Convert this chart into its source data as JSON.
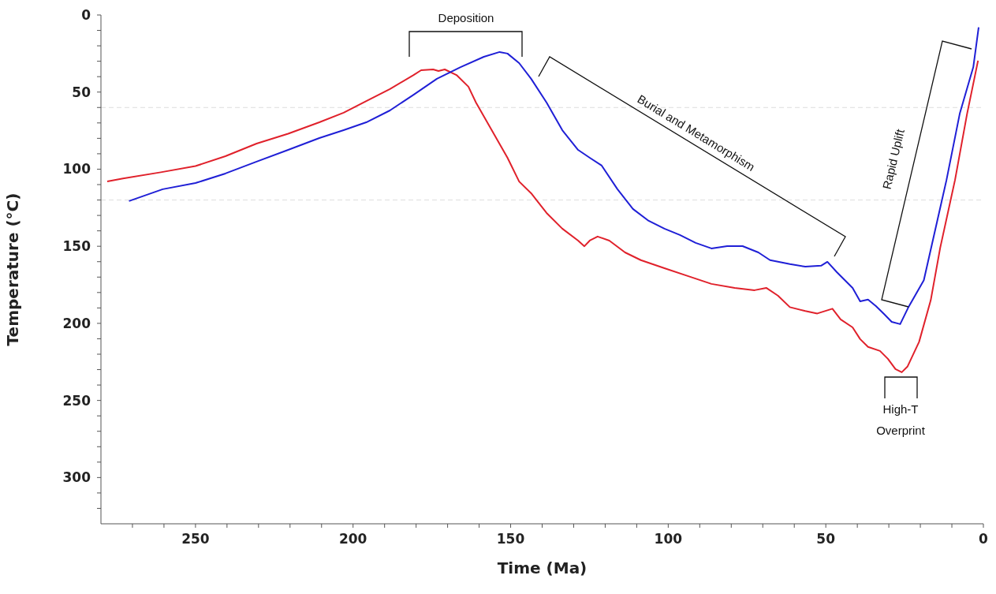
{
  "chart_data": {
    "type": "line",
    "xlabel": "Time  (Ma)",
    "ylabel": "Temperature  (°C)",
    "xlim": [
      280,
      0
    ],
    "ylim": [
      330,
      0
    ],
    "xticks": [
      0,
      {
        "value": 10,
        "label": null
      },
      {
        "value": 20,
        "label": null
      },
      {
        "value": 30,
        "label": null
      },
      {
        "value": 40,
        "label": null
      },
      50,
      {
        "value": 60,
        "label": null
      },
      {
        "value": 70,
        "label": null
      },
      {
        "value": 80,
        "label": null
      },
      {
        "value": 90,
        "label": null
      },
      100,
      {
        "value": 110,
        "label": null
      },
      {
        "value": 120,
        "label": null
      },
      {
        "value": 130,
        "label": null
      },
      {
        "value": 140,
        "label": null
      },
      150,
      {
        "value": 160,
        "label": null
      },
      {
        "value": 170,
        "label": null
      },
      {
        "value": 180,
        "label": null
      },
      {
        "value": 190,
        "label": null
      },
      200,
      {
        "value": 210,
        "label": null
      },
      {
        "value": 220,
        "label": null
      },
      {
        "value": 230,
        "label": null
      },
      {
        "value": 240,
        "label": null
      },
      250,
      {
        "value": 260,
        "label": null
      },
      {
        "value": 270,
        "label": null
      }
    ],
    "yticks": [
      0,
      {
        "value": 10,
        "label": null
      },
      {
        "value": 20,
        "label": null
      },
      {
        "value": 30,
        "label": null
      },
      {
        "value": 40,
        "label": null
      },
      50,
      {
        "value": 60,
        "label": null
      },
      {
        "value": 70,
        "label": null
      },
      {
        "value": 80,
        "label": null
      },
      {
        "value": 90,
        "label": null
      },
      100,
      {
        "value": 110,
        "label": null
      },
      {
        "value": 120,
        "label": null
      },
      {
        "value": 130,
        "label": null
      },
      {
        "value": 140,
        "label": null
      },
      150,
      {
        "value": 160,
        "label": null
      },
      {
        "value": 170,
        "label": null
      },
      {
        "value": 180,
        "label": null
      },
      {
        "value": 190,
        "label": null
      },
      200,
      {
        "value": 210,
        "label": null
      },
      {
        "value": 220,
        "label": null
      },
      {
        "value": 230,
        "label": null
      },
      {
        "value": 240,
        "label": null
      },
      250,
      {
        "value": 260,
        "label": null
      },
      {
        "value": 270,
        "label": null
      },
      {
        "value": 280,
        "label": null
      },
      {
        "value": 290,
        "label": null
      },
      300,
      {
        "value": 310,
        "label": null
      },
      {
        "value": 320,
        "label": null
      }
    ],
    "line_style": "solid",
    "series": [
      {
        "color": "#e0212b",
        "x": [
          278,
          273,
          261,
          250,
          240.5,
          230.6,
          220.6,
          210.7,
          203,
          195.8,
          188.3,
          180.8,
          178.4,
          174.6,
          172.9,
          170.9,
          167.2,
          163.4,
          161,
          156,
          151,
          147.3,
          143.5,
          138.6,
          133.6,
          128.6,
          126.6,
          124.9,
          122.4,
          118.7,
          113.7,
          108.7,
          101.2,
          93.8,
          86.3,
          78.9,
          72.6,
          68.9,
          65.2,
          61.4,
          56.5,
          52.7,
          47.9,
          45.3,
          41.5,
          39.1,
          36.6,
          32.8,
          30.3,
          27.9,
          25.9,
          24.1,
          20.4,
          16.7,
          13.7,
          9,
          5.2,
          1.7
        ],
        "values": [
          108,
          106,
          102,
          98,
          91.6,
          83.4,
          77,
          69.6,
          63.4,
          55.8,
          48,
          38.9,
          35.8,
          35.3,
          36.3,
          35.3,
          38.9,
          46.5,
          56.8,
          74.7,
          92.6,
          108,
          115.6,
          128.4,
          138.6,
          146.3,
          150,
          146.3,
          143.7,
          146.3,
          154,
          159,
          164.2,
          169.3,
          174.4,
          177,
          178.5,
          177,
          182,
          189.5,
          192,
          193.6,
          190.5,
          197.4,
          202.6,
          210.2,
          215.3,
          217.9,
          223,
          229.7,
          231.7,
          228.1,
          212,
          185,
          151,
          107,
          64.4,
          29.6
        ]
      },
      {
        "color": "#1f1fd6",
        "x": [
          271.1,
          260.4,
          250,
          240.5,
          230.6,
          220.6,
          210.7,
          203,
          195.8,
          188.3,
          180.8,
          173.4,
          165.9,
          158.5,
          153.5,
          151,
          147.3,
          143.5,
          138.6,
          133.6,
          128.6,
          124.9,
          121.1,
          116.1,
          111.2,
          106.2,
          101.2,
          96.3,
          91.3,
          86.3,
          81.3,
          76.4,
          71.4,
          67.7,
          61.4,
          56.5,
          51.5,
          49.5,
          46.5,
          41.5,
          39.1,
          36.6,
          34.1,
          31.6,
          29.1,
          26.4,
          23.9,
          18.9,
          11.7,
          7.5,
          3.2,
          1.5
        ],
        "values": [
          120.7,
          113,
          109,
          102.8,
          95.1,
          87.5,
          79.8,
          74.7,
          69.6,
          61.9,
          51.7,
          41.4,
          33.8,
          27.1,
          24,
          25,
          31.2,
          41.4,
          56.8,
          74.7,
          87.5,
          92.6,
          97.7,
          113,
          125.8,
          133.5,
          138.6,
          142.7,
          147.8,
          151.4,
          149.9,
          149.9,
          154,
          159,
          161.6,
          163.2,
          162.6,
          160.1,
          166.8,
          177,
          185.7,
          184.6,
          188.8,
          193.8,
          199,
          200.5,
          190,
          172,
          107,
          64,
          33.8,
          8
        ]
      }
    ],
    "ref_lines": [
      {
        "axis": "y",
        "value": 60,
        "color": "#dddddd",
        "line_style": "dashed"
      },
      {
        "axis": "y",
        "value": 120,
        "color": "#dddddd",
        "line_style": "dashed"
      }
    ],
    "annotations": [
      "Deposition",
      "Burial and Metamorphism",
      "Rapid Uplift",
      "High-T Overprint"
    ]
  }
}
